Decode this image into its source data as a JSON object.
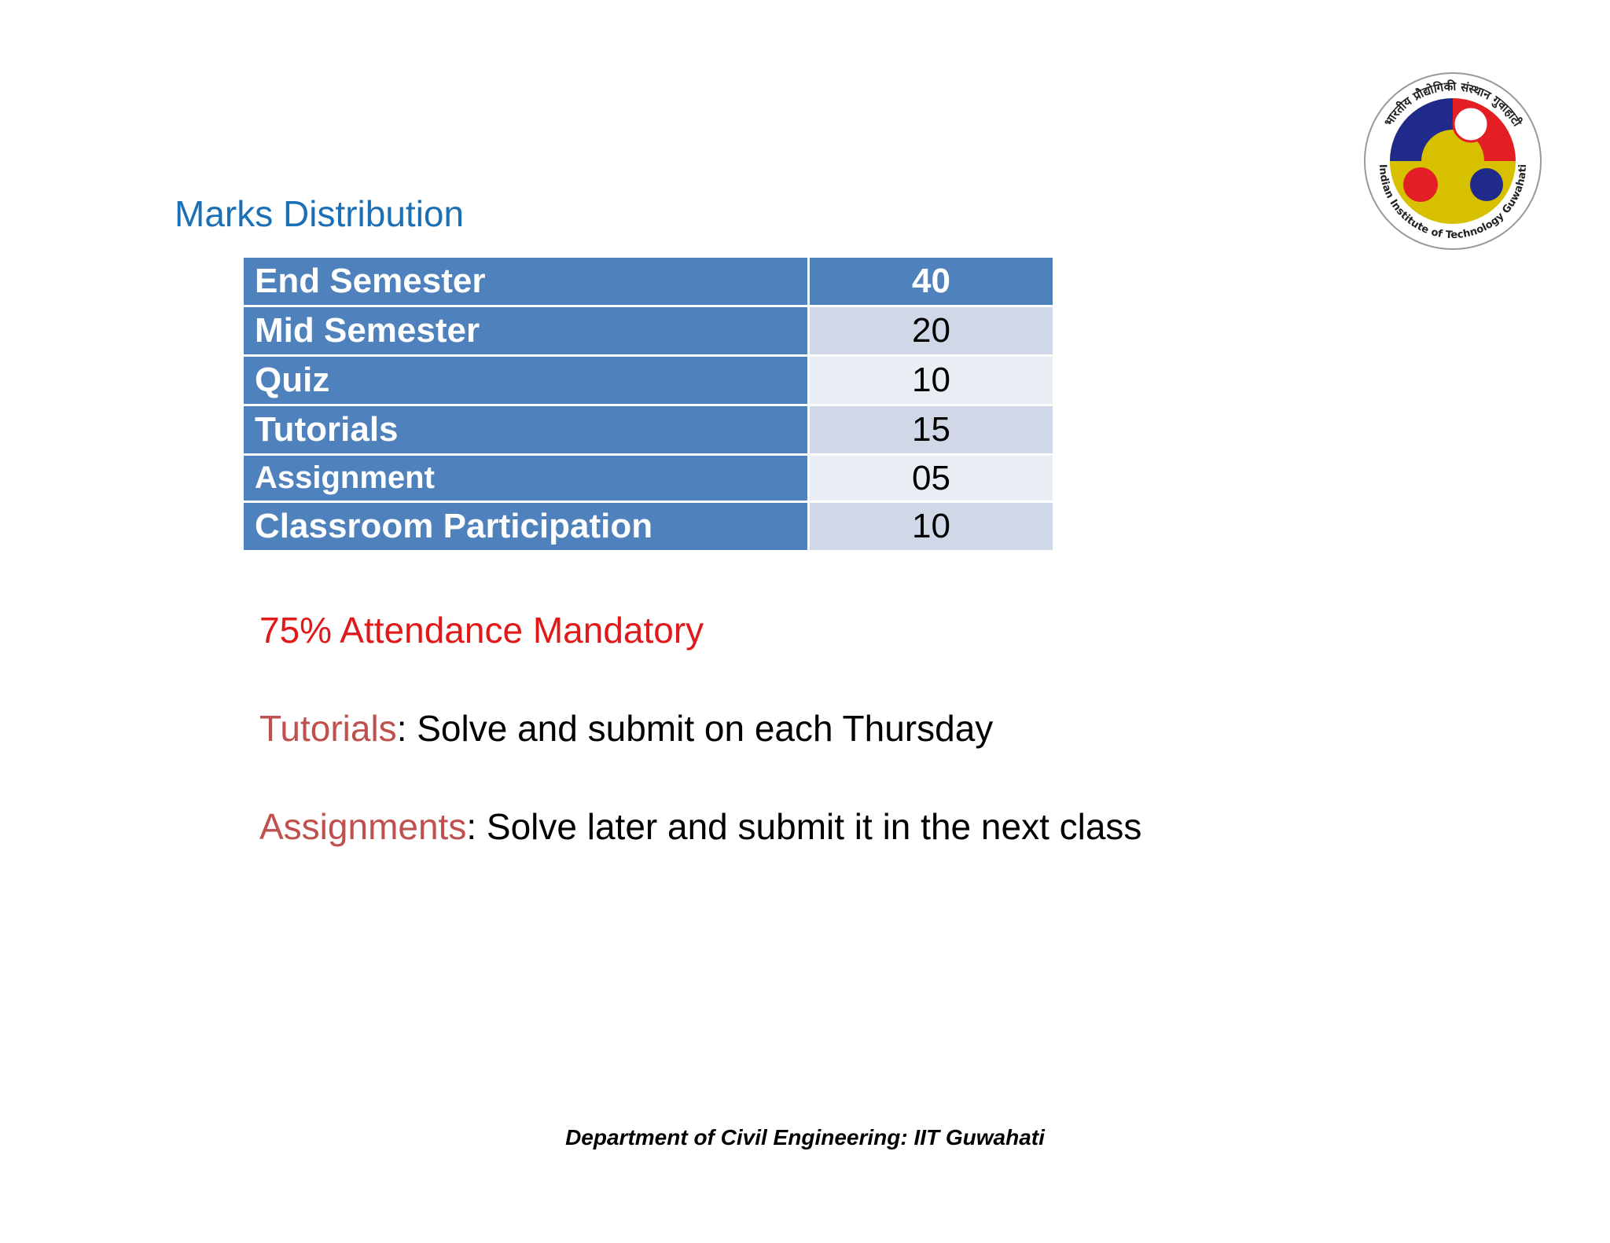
{
  "slide": {
    "title": "Marks Distribution"
  },
  "logo": {
    "icon": "iit-guwahati-seal-icon",
    "text_outer_top": "भारतीय प्रौद्योगिकी संस्थान गुवाहाटी",
    "text_outer_bottom": "Indian Institute of Technology Guwahati",
    "colors": {
      "blue": "#1f2a8a",
      "red": "#e31e24",
      "yellow": "#d6c000",
      "ring": "#ffffff"
    }
  },
  "marks_table": {
    "rows": [
      {
        "label": "End Semester",
        "value": "40"
      },
      {
        "label": "Mid Semester",
        "value": "20"
      },
      {
        "label": "Quiz",
        "value": "10"
      },
      {
        "label": "Tutorials",
        "value": "15"
      },
      {
        "label": "Assignment",
        "value": "05"
      },
      {
        "label": "Classroom Participation",
        "value": "10"
      }
    ],
    "colors": {
      "header": "#4f81bd",
      "band_dark": "#d0d8e8",
      "band_light": "#e9edf4"
    }
  },
  "notes": {
    "attendance": "75% Attendance Mandatory",
    "tutorials_key": "Tutorials",
    "tutorials_text": ": Solve and submit on each Thursday",
    "assignments_key": "Assignments",
    "assignments_text": ": Solve later and submit it in the next class",
    "colors": {
      "attendance": "#e01a1a",
      "key": "#c0504d"
    }
  },
  "footer": {
    "text": "Department of Civil Engineering: IIT Guwahati"
  }
}
